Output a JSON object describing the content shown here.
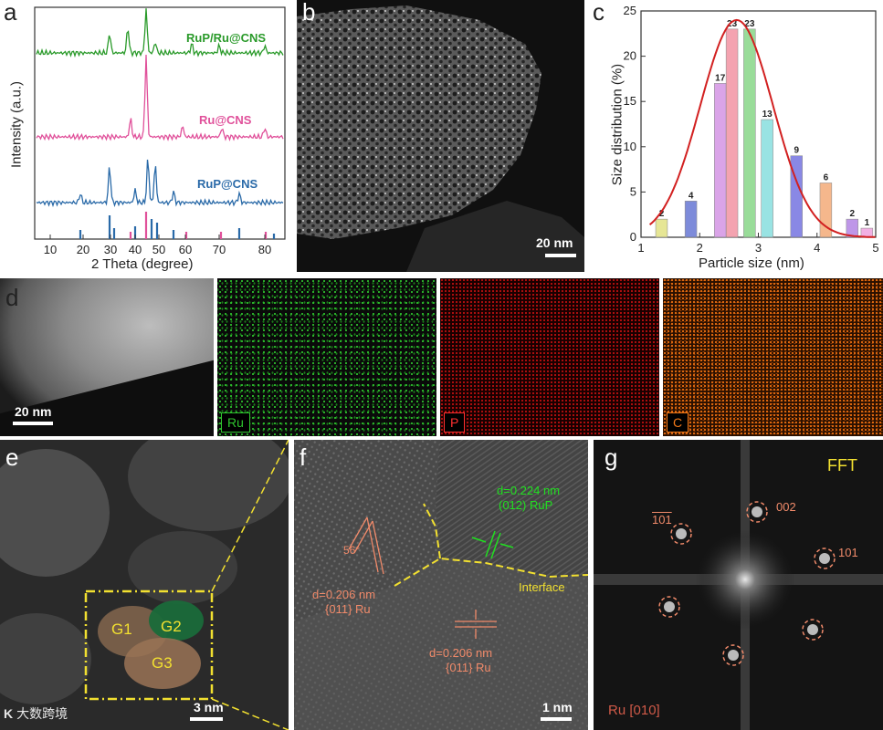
{
  "figure": {
    "panel_letters": [
      "a",
      "b",
      "c",
      "d",
      "e",
      "f",
      "g"
    ],
    "watermark": "大数跨境"
  },
  "panel_a": {
    "ylabel": "Intensity (a.u.)",
    "xlabel": "2 Theta (degree)",
    "xticks": [
      "10",
      "20",
      "30",
      "40",
      "50",
      "60",
      "70",
      "80"
    ],
    "series_labels": [
      "RuP/Ru@CNS",
      "Ru@CNS",
      "RuP@CNS"
    ],
    "series_colors": [
      "#2a9a2a",
      "#e0509a",
      "#2a6aa8"
    ]
  },
  "panel_b": {
    "scale": "20 nm"
  },
  "chart_data": {
    "type": "bar",
    "x": [
      1.25,
      1.75,
      2.0,
      2.25,
      2.5,
      2.75,
      3.0,
      3.25,
      3.5,
      3.75,
      4.0,
      4.25,
      4.5,
      4.75
    ],
    "xlabel": "Particle size (nm)",
    "ylabel": "Size distribution (%)",
    "xlim": [
      1,
      5
    ],
    "ylim": [
      0,
      25
    ],
    "xticks": [
      1,
      2,
      3,
      4,
      5
    ],
    "yticks": [
      0,
      5,
      10,
      15,
      20,
      25
    ],
    "bars": [
      {
        "x": 1.35,
        "value": 2,
        "color": "#e4e48a"
      },
      {
        "x": 1.85,
        "value": 4,
        "color": "#6f7fd6"
      },
      {
        "x": 2.35,
        "value": 17,
        "color": "#d69be6"
      },
      {
        "x": 2.55,
        "value": 23,
        "color": "#f39aa8"
      },
      {
        "x": 2.85,
        "value": 23,
        "color": "#8fd98f"
      },
      {
        "x": 3.15,
        "value": 13,
        "color": "#8fe0e0"
      },
      {
        "x": 3.65,
        "value": 9,
        "color": "#7d7ce3"
      },
      {
        "x": 4.15,
        "value": 6,
        "color": "#f5b080"
      },
      {
        "x": 4.6,
        "value": 2,
        "color": "#b88be6"
      },
      {
        "x": 4.85,
        "value": 1,
        "color": "#f0a8e0"
      }
    ],
    "fit": {
      "type": "gaussian",
      "color": "#d22020",
      "mean": 2.63,
      "sigma": 0.62,
      "peak": 24
    }
  },
  "panel_d": {
    "scale": "20 nm",
    "maps": [
      {
        "label": "Ru",
        "color": "#2ec42e"
      },
      {
        "label": "P",
        "color": "#e01818"
      },
      {
        "label": "C",
        "color": "#f07818"
      }
    ]
  },
  "panel_e": {
    "scale": "3 nm",
    "grains": [
      "G1",
      "G2",
      "G3"
    ]
  },
  "panel_f": {
    "scale": "1 nm",
    "annotations": [
      "d=0.224 nm",
      "(012) RuP",
      "56°",
      "d=0.206 nm",
      "{011} Ru",
      "Interface",
      "d=0.206 nm",
      "{011} Ru"
    ]
  },
  "panel_g": {
    "title": "FFT",
    "zone": "Ru [010]",
    "spots": [
      "101",
      "002",
      "101"
    ]
  }
}
